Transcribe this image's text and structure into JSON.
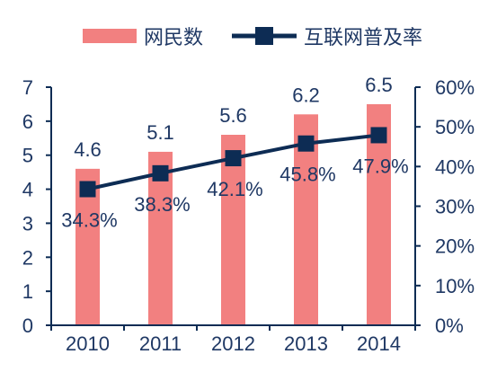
{
  "chart_data": {
    "type": "bar",
    "categories": [
      "2010",
      "2011",
      "2012",
      "2013",
      "2014"
    ],
    "series": [
      {
        "name": "网民数",
        "type": "bar",
        "axis": "left",
        "values": [
          4.6,
          5.1,
          5.6,
          6.2,
          6.5
        ],
        "labels": [
          "4.6",
          "5.1",
          "5.6",
          "6.2",
          "6.5"
        ],
        "color": "#f28080"
      },
      {
        "name": "互联网普及率",
        "type": "line",
        "axis": "right",
        "values": [
          34.3,
          38.3,
          42.1,
          45.8,
          47.9
        ],
        "labels": [
          "34.3%",
          "38.3%",
          "42.1%",
          "45.8%",
          "47.9%"
        ],
        "color": "#0d2c54",
        "marker": "square"
      }
    ],
    "y_left": {
      "min": 0,
      "max": 7,
      "ticks": [
        "0",
        "1",
        "2",
        "3",
        "4",
        "5",
        "6",
        "7"
      ]
    },
    "y_right": {
      "min": 0,
      "max": 60,
      "ticks": [
        "0%",
        "10%",
        "20%",
        "30%",
        "40%",
        "50%",
        "60%"
      ]
    },
    "grid": false,
    "legend_position": "top",
    "axis_color": "#0d2c54",
    "label_color": "#1f3864"
  }
}
